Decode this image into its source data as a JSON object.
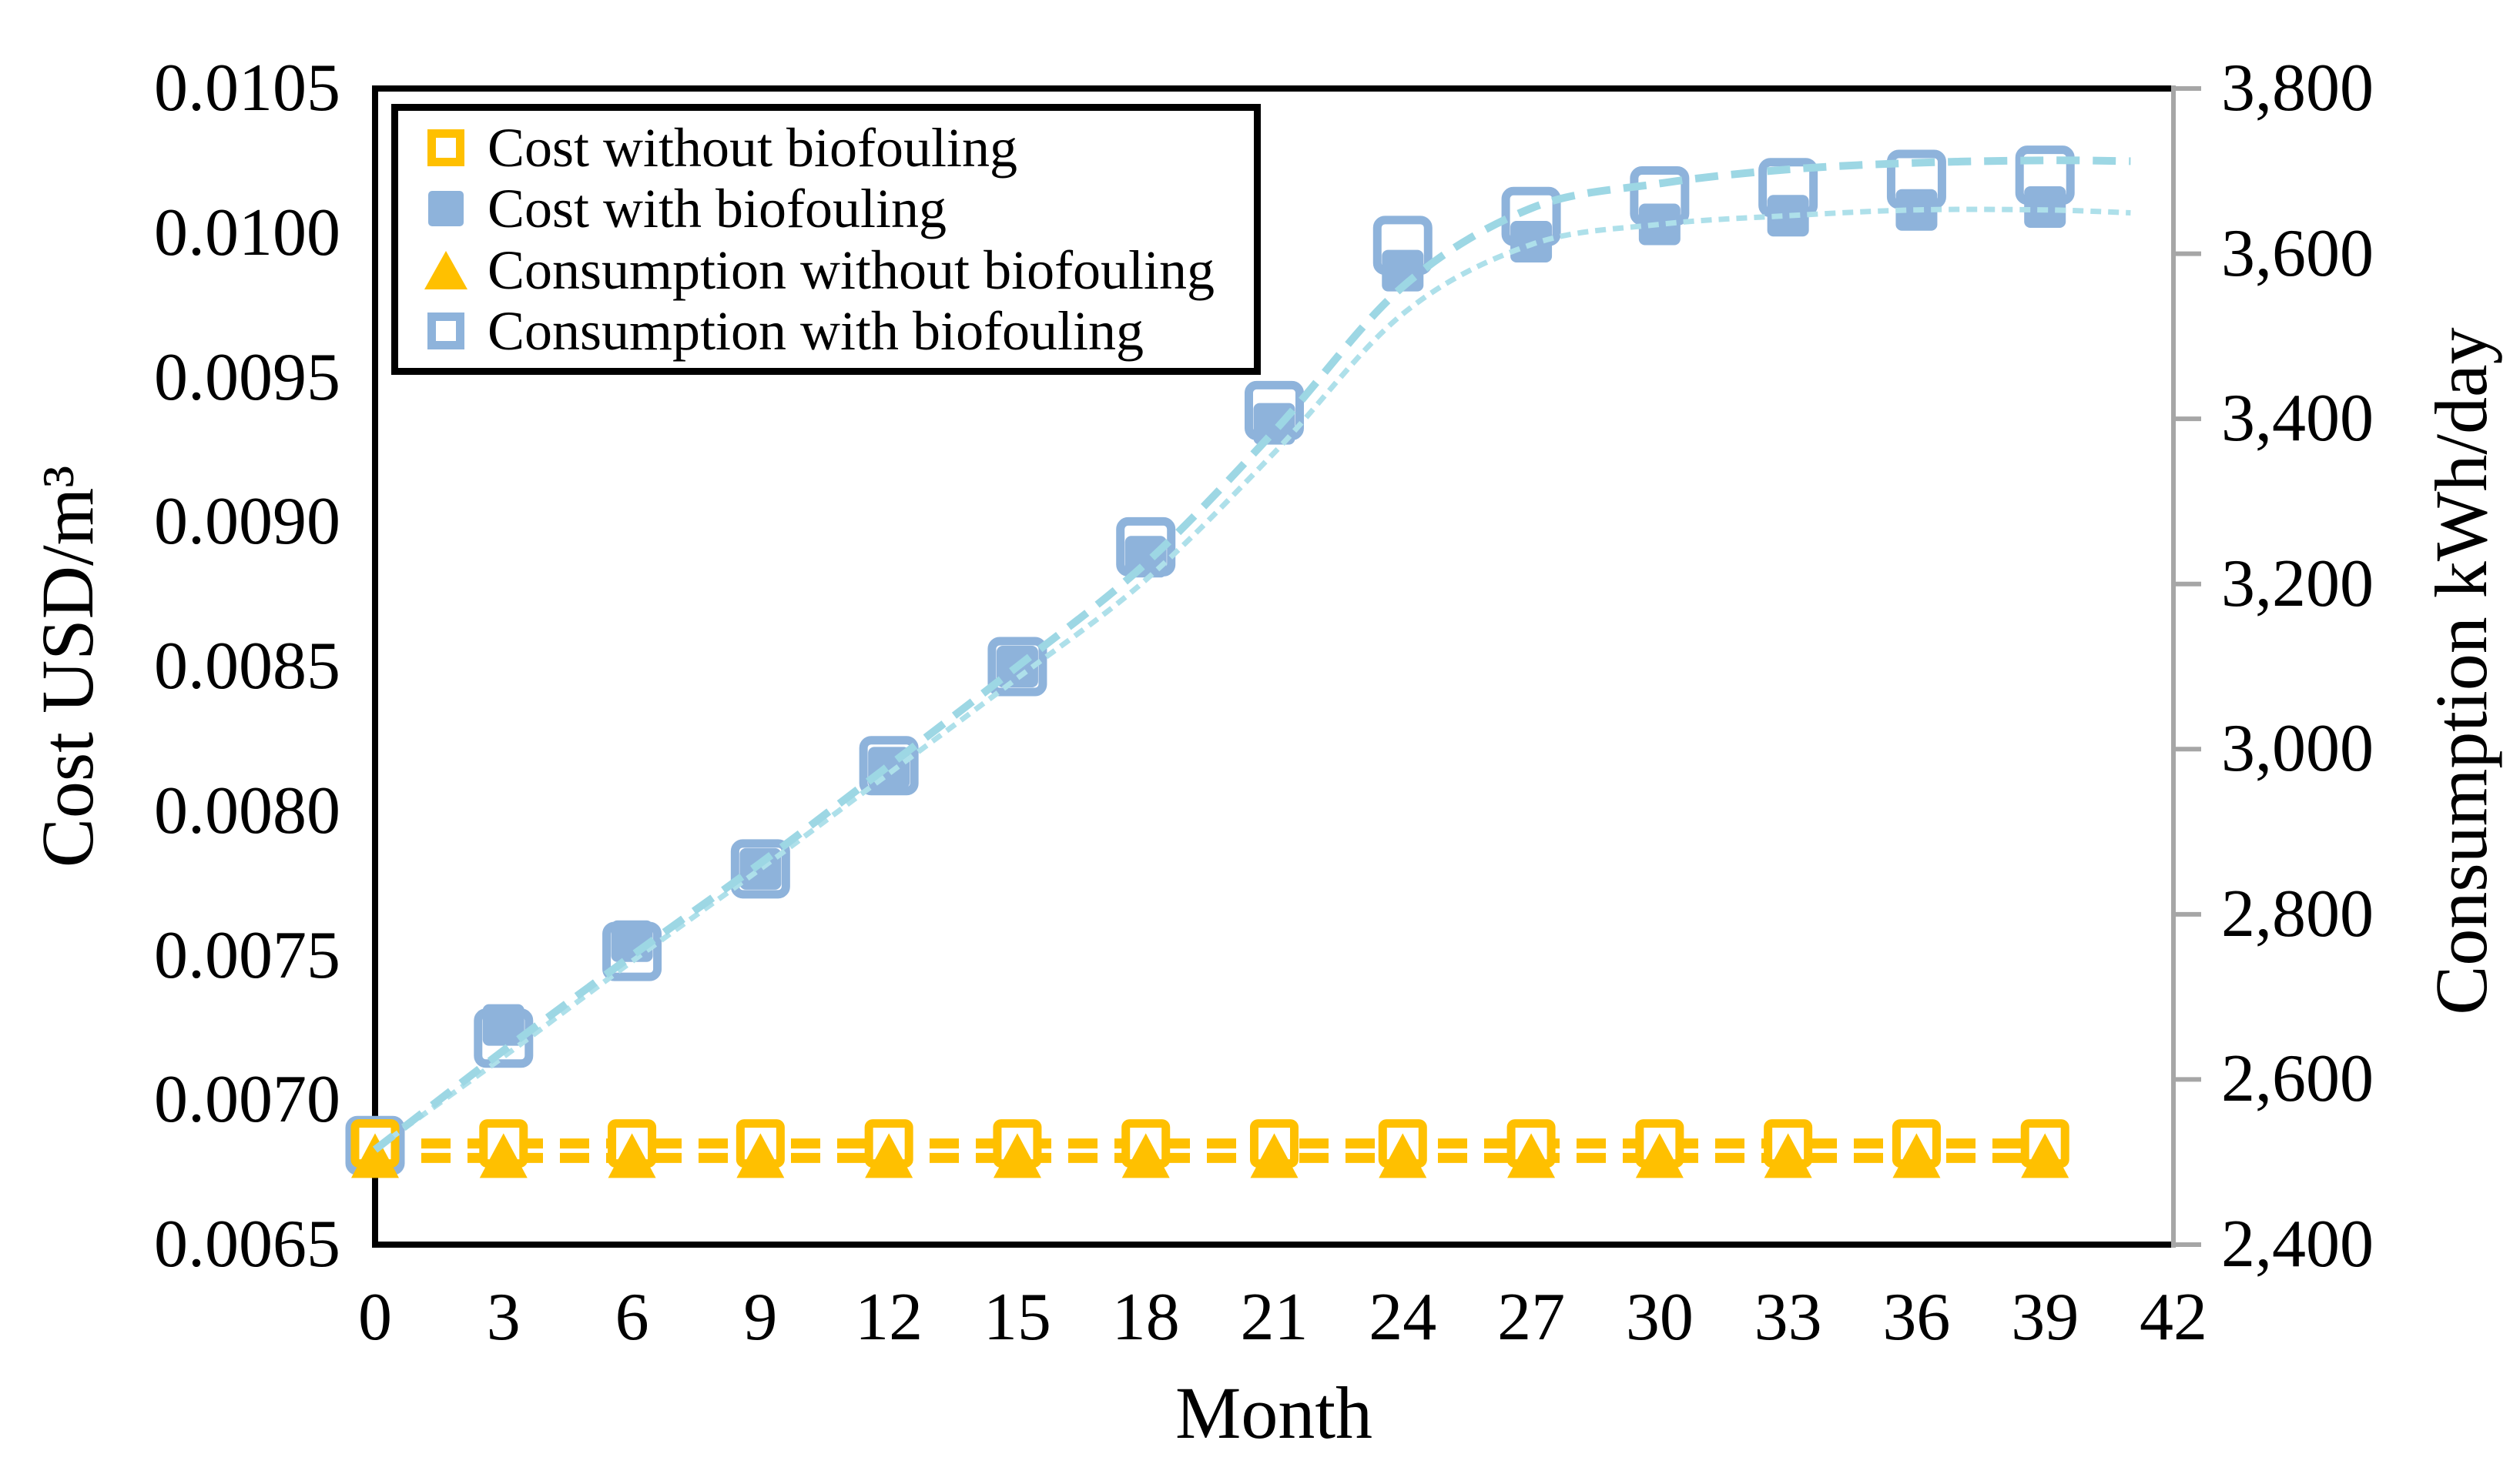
{
  "chart_data": {
    "type": "scatter",
    "title": "",
    "xlabel": "Month",
    "ylabel_left": "Cost USD/m³",
    "ylabel_right": "Consumption kWh/day",
    "grid": "off",
    "legend_position": "top-left-inside",
    "x_axis": {
      "min": 0,
      "max": 42,
      "tick_step": 3,
      "tick_labels": [
        "0",
        "3",
        "6",
        "9",
        "12",
        "15",
        "18",
        "21",
        "24",
        "27",
        "30",
        "33",
        "36",
        "39",
        "42"
      ]
    },
    "y_left_axis": {
      "min": 0.0065,
      "max": 0.0105,
      "tick_labels": [
        "0.0105",
        "0.0100",
        "0.0095",
        "0.0090",
        "0.0085",
        "0.0080",
        "0.0075",
        "0.0070",
        "0.0065"
      ]
    },
    "y_right_axis": {
      "min": 2400,
      "max": 3800,
      "tick_labels": [
        "3,800",
        "3,600",
        "3,400",
        "3,200",
        "3,000",
        "2,800",
        "2,600",
        "2,400"
      ]
    },
    "months": [
      0,
      3,
      6,
      9,
      12,
      15,
      18,
      21,
      24,
      27,
      30,
      33,
      36,
      39
    ],
    "series": [
      {
        "name": "Cost without biofouling",
        "axis": "left",
        "marker": "open-square",
        "color": "#FFC000",
        "values": [
          0.00685,
          0.00685,
          0.00685,
          0.00685,
          0.00685,
          0.00685,
          0.00685,
          0.00685,
          0.00685,
          0.00685,
          0.00685,
          0.00685,
          0.00685,
          0.00685
        ]
      },
      {
        "name": "Cost with biofouling",
        "axis": "left",
        "marker": "filled-square",
        "color": "#8EB3DB",
        "values": [
          0.00683,
          0.00726,
          0.00755,
          0.0078,
          0.00815,
          0.0085,
          0.00888,
          0.00934,
          0.00987,
          0.00997,
          0.01003,
          0.01006,
          0.01008,
          0.01009
        ]
      },
      {
        "name": "Consumption without biofouling",
        "axis": "right",
        "marker": "filled-triangle",
        "color": "#FFC000",
        "values": [
          2505,
          2505,
          2505,
          2505,
          2505,
          2505,
          2505,
          2505,
          2505,
          2505,
          2505,
          2505,
          2505,
          2505
        ]
      },
      {
        "name": "Consumption with biofouling",
        "axis": "right",
        "marker": "open-square",
        "color": "#8EB3DB",
        "values": [
          2520,
          2650,
          2755,
          2855,
          2980,
          3100,
          3245,
          3410,
          3610,
          3645,
          3670,
          3680,
          3690,
          3695
        ]
      }
    ],
    "trendlines": [
      {
        "for": "Cost without biofouling",
        "axis": "left",
        "style": "dashed",
        "color": "#FFC000",
        "x": [
          0,
          39
        ],
        "y": [
          0.00685,
          0.00685
        ]
      },
      {
        "for": "Consumption without biofouling",
        "axis": "right",
        "style": "dashed",
        "color": "#FFC000",
        "x": [
          0,
          39
        ],
        "y": [
          2505,
          2505
        ]
      },
      {
        "for": "Cost with biofouling",
        "axis": "left",
        "style": "fine-dashed",
        "color": "#AEE0EA",
        "x": [
          0,
          3,
          6,
          9,
          12,
          15,
          18,
          21,
          24,
          27,
          30,
          33,
          36,
          39,
          41
        ],
        "y": [
          0.00683,
          0.00715,
          0.00748,
          0.0078,
          0.00813,
          0.00846,
          0.0088,
          0.00924,
          0.00972,
          0.00996,
          0.01003,
          0.01006,
          0.01008,
          0.01008,
          0.01007
        ]
      },
      {
        "for": "Consumption with biofouling",
        "axis": "right",
        "style": "dashed",
        "color": "#9DD7E4",
        "x": [
          0,
          3,
          6,
          9,
          12,
          15,
          18,
          21,
          24,
          27,
          30,
          33,
          36,
          39,
          41
        ],
        "y": [
          2515,
          2635,
          2750,
          2862,
          2980,
          3100,
          3225,
          3385,
          3560,
          3655,
          3685,
          3702,
          3710,
          3713,
          3712
        ]
      }
    ],
    "legend": [
      {
        "label": "Cost without biofouling",
        "marker": "open-square",
        "color": "#FFC000"
      },
      {
        "label": "Cost with biofouling",
        "marker": "filled-square",
        "color": "#8EB3DB"
      },
      {
        "label": "Consumption without biofouling",
        "marker": "filled-triangle",
        "color": "#FFC000"
      },
      {
        "label": "Consumption with biofouling",
        "marker": "open-square",
        "color": "#8EB3DB"
      }
    ],
    "colors": {
      "axis_line_black": "#000000",
      "axis_line_gray": "#A6A6A6",
      "yellow": "#FFC000",
      "blue_marker": "#8EB3DB",
      "cyan_trend_dashed": "#9DD7E4",
      "cyan_trend_fine": "#AEE0EA"
    }
  }
}
